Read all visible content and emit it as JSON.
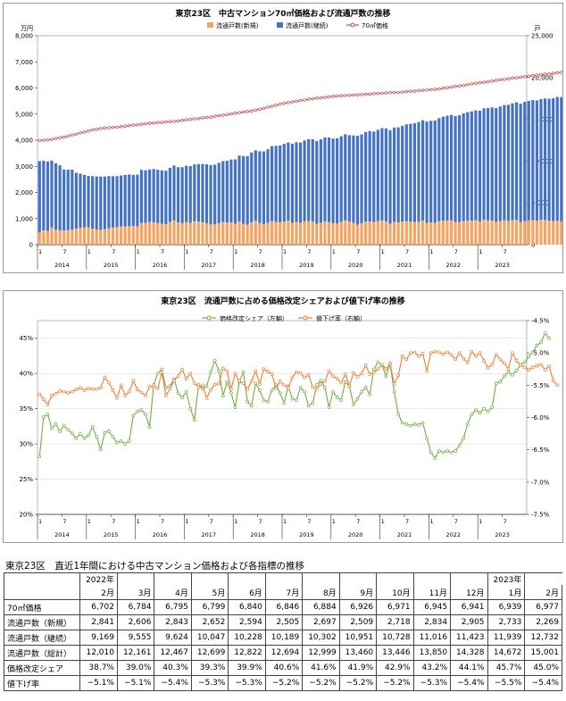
{
  "chart_data": [
    {
      "type": "bar+line",
      "title": "東京23区　中古マンション70㎡価格および流通戸数の推移",
      "y_left_unit": "万円",
      "y_right_unit": "戸",
      "y_left_ticks": [
        "0",
        "1,000",
        "2,000",
        "3,000",
        "4,000",
        "5,000",
        "6,000",
        "7,000",
        "8,000"
      ],
      "y_right_ticks": [
        "0",
        "5,000",
        "10,000",
        "15,000",
        "20,000",
        "25,000"
      ],
      "ylim_left": [
        0,
        8000
      ],
      "ylim_right": [
        0,
        25000
      ],
      "x_month_ticks": [
        "1",
        "7",
        "1",
        "7",
        "1",
        "7",
        "1",
        "7",
        "1",
        "7",
        "1",
        "7",
        "1",
        "7",
        "1",
        "7",
        "1",
        "7",
        "1",
        "7"
      ],
      "x_year_labels": [
        "2014",
        "2015",
        "2016",
        "2017",
        "2018",
        "2019",
        "2020",
        "2021",
        "2022",
        "2023"
      ],
      "legend": [
        "流通戸数(新規)",
        "流通戸数(継続)",
        "70㎡価格"
      ],
      "legend_position": "top",
      "colors": {
        "new": "#f4a460",
        "continuing": "#4472c4",
        "price": "#c0504d"
      },
      "series": [
        {
          "name": "流通戸数(新規)",
          "axis": "right",
          "stacked": true,
          "values": [
            1450,
            1700,
            1650,
            2050,
            1780,
            1700,
            1690,
            1720,
            1780,
            1900,
            2000,
            2050,
            2080,
            1900,
            1820,
            1750,
            1850,
            1950,
            2040,
            2100,
            2180,
            2150,
            2200,
            2240,
            2180,
            2580,
            2600,
            2700,
            2650,
            2580,
            2500,
            2450,
            2700,
            2900,
            2650,
            2570,
            2690,
            2600,
            2800,
            2750,
            2650,
            2550,
            2420,
            2450,
            2550,
            2700,
            2640,
            2680,
            2510,
            2760,
            2510,
            2400,
            2650,
            2850,
            2580,
            2460,
            2590,
            2800,
            2700,
            2680,
            2760,
            2890,
            2610,
            2700,
            2620,
            2790,
            2820,
            2780,
            2510,
            2600,
            2780,
            2700,
            2550,
            2530,
            2700,
            2910,
            2750,
            2600,
            2400,
            2540,
            2750,
            2760,
            2690,
            2800,
            2900,
            2780,
            2500,
            2700,
            2660,
            2750,
            2800,
            2740,
            2700,
            2740,
            2880,
            2600,
            2650,
            2600,
            2800,
            2870,
            2880,
            2900,
            2710,
            2720,
            2800,
            2850,
            2860,
            2920,
            2780,
            2960,
            2900,
            2880,
            2720,
            2830,
            2900,
            2840,
            2920,
            2960,
            2700,
            2820,
            2900,
            2940,
            2860,
            2960,
            2950,
            2860,
            2820,
            2880,
            2790,
            2730,
            2740,
            2610,
            2900,
            2850,
            2720,
            2900,
            2650,
            2960,
            2560,
            2840,
            2610,
            2600,
            2850,
            2690
          ]
        },
        {
          "name": "流通戸数(継続)",
          "axis": "right",
          "stacked": true,
          "values": [
            8550,
            8350,
            8300,
            8000,
            7950,
            7800,
            7300,
            7250,
            7200,
            6700,
            6500,
            6300,
            6150,
            6300,
            6350,
            6400,
            6300,
            6260,
            6150,
            6100,
            6100,
            6200,
            6200,
            6100,
            6200,
            6380,
            6300,
            6300,
            6400,
            6380,
            6400,
            6400,
            6500,
            6560,
            6620,
            6700,
            6750,
            6800,
            6800,
            6900,
            7000,
            7060,
            7100,
            7120,
            7250,
            7300,
            7400,
            7500,
            7700,
            7900,
            8100,
            8200,
            8380,
            8440,
            8600,
            8700,
            8830,
            9000,
            9130,
            9200,
            9300,
            9330,
            9460,
            9560,
            9600,
            9680,
            9800,
            9830,
            9900,
            10000,
            10060,
            10130,
            10150,
            10200,
            10270,
            10300,
            10350,
            10470,
            10620,
            10650,
            10720,
            10830,
            10840,
            10950,
            11050,
            11140,
            11200,
            11320,
            11380,
            11470,
            11600,
            11720,
            11830,
            11950,
            12010,
            12130,
            12170,
            12260,
            12330,
            12440,
            12550,
            12620,
            12690,
            12770,
            12900,
            13000,
            13090,
            13150,
            13250,
            13360,
            13460,
            13540,
            13620,
            13700,
            13800,
            13900,
            13990,
            14080,
            14170,
            14260,
            14300,
            14360,
            14400,
            14460,
            14540,
            14600,
            14700,
            14800,
            14870,
            14950,
            15030,
            15120,
            15190,
            15260,
            15310,
            15370,
            15420,
            15480,
            15550,
            15650,
            15760,
            15900,
            15960,
            16050
          ]
        },
        {
          "name": "70㎡価格",
          "axis": "left",
          "type": "line",
          "values": [
            3990,
            4000,
            4010,
            4030,
            4070,
            4100,
            4120,
            4160,
            4200,
            4230,
            4280,
            4310,
            4350,
            4400,
            4420,
            4450,
            4470,
            4480,
            4490,
            4500,
            4520,
            4540,
            4560,
            4580,
            4590,
            4610,
            4630,
            4650,
            4660,
            4680,
            4680,
            4700,
            4710,
            4720,
            4740,
            4760,
            4780,
            4800,
            4820,
            4830,
            4860,
            4870,
            4880,
            4920,
            4940,
            4960,
            4980,
            5010,
            5030,
            5050,
            5080,
            5100,
            5120,
            5160,
            5190,
            5220,
            5270,
            5300,
            5340,
            5380,
            5410,
            5440,
            5470,
            5490,
            5520,
            5540,
            5570,
            5590,
            5610,
            5620,
            5640,
            5660,
            5680,
            5690,
            5700,
            5710,
            5720,
            5730,
            5740,
            5750,
            5760,
            5760,
            5780,
            5790,
            5800,
            5810,
            5820,
            5830,
            5830,
            5840,
            5860,
            5870,
            5880,
            5900,
            5910,
            5920,
            5930,
            5950,
            5960,
            5990,
            6010,
            6040,
            6060,
            6080,
            6100,
            6130,
            6160,
            6180,
            6200,
            6220,
            6240,
            6260,
            6290,
            6310,
            6330,
            6350,
            6380,
            6390,
            6410,
            6430,
            6450,
            6470,
            6490,
            6510,
            6530,
            6540,
            6560,
            6580,
            6600,
            6620,
            6640,
            6650,
            6670,
            6680,
            6700,
            6720,
            6730,
            6740,
            6760,
            6780,
            6800,
            6820,
            6840,
            6860
          ]
        }
      ]
    },
    {
      "type": "line",
      "title": "東京23区　流通戸数に占める価格改定シェアおよび値下げ率の推移",
      "y_left_ticks": [
        "20%",
        "25%",
        "30%",
        "35%",
        "40%",
        "45%"
      ],
      "y_right_ticks": [
        "-7.5%",
        "-7.0%",
        "-6.5%",
        "-6.0%",
        "-5.5%",
        "-5.0%",
        "-4.5%"
      ],
      "ylim_left": [
        20,
        47.5
      ],
      "ylim_right": [
        -7.5,
        -4.5
      ],
      "x_month_ticks": [
        "1",
        "7",
        "1",
        "7",
        "1",
        "7",
        "1",
        "7",
        "1",
        "7",
        "1",
        "7",
        "1",
        "7",
        "1",
        "7",
        "1",
        "7",
        "1",
        "7"
      ],
      "x_year_labels": [
        "2014",
        "2015",
        "2016",
        "2017",
        "2018",
        "2019",
        "2020",
        "2021",
        "2022",
        "2023"
      ],
      "legend": [
        "価格改定シェア（左軸）",
        "値下げ率（右軸）"
      ],
      "legend_position": "top",
      "colors": {
        "share": "#70ad47",
        "rate": "#ed7d31"
      },
      "series": [
        {
          "name": "価格改定シェア（左軸）",
          "axis": "left",
          "values": [
            28.2,
            33.8,
            34.2,
            32.2,
            32.8,
            31.8,
            32.6,
            32.0,
            31.5,
            30.8,
            31.4,
            30.8,
            31.2,
            32.4,
            31.0,
            29.2,
            31.6,
            31.8,
            31.0,
            30.2,
            30.4,
            30.0,
            30.4,
            34.0,
            34.6,
            34.8,
            34.2,
            32.4,
            38.4,
            40.0,
            40.6,
            38.0,
            38.2,
            39.2,
            37.2,
            36.6,
            37.4,
            35.0,
            33.4,
            38.4,
            37.8,
            38.2,
            40.2,
            41.8,
            40.4,
            36.8,
            38.8,
            37.2,
            35.2,
            38.8,
            40.2,
            36.0,
            35.4,
            38.6,
            37.6,
            36.2,
            36.0,
            37.6,
            38.4,
            37.2,
            35.8,
            38.2,
            36.4,
            36.2,
            38.0,
            37.4,
            35.4,
            35.8,
            38.4,
            39.0,
            38.0,
            35.2,
            37.4,
            36.6,
            36.2,
            38.8,
            38.2,
            35.6,
            36.4,
            37.4,
            38.0,
            37.0,
            40.6,
            41.6,
            41.2,
            39.6,
            41.4,
            37.4,
            34.2,
            33.0,
            32.8,
            32.6,
            32.8,
            32.7,
            33.0,
            30.8,
            28.8,
            28.0,
            29.0,
            28.8,
            29.0,
            28.8,
            29.0,
            29.8,
            30.8,
            32.8,
            34.2,
            34.8,
            34.4,
            35.0,
            34.6,
            35.2,
            38.6,
            38.8,
            39.6,
            40.2,
            39.8,
            40.4,
            41.2,
            41.6,
            42.4,
            43.0,
            44.0,
            44.4,
            45.7,
            45.0
          ]
        },
        {
          "name": "値下げ率（右軸）",
          "axis": "right",
          "values": [
            -5.64,
            -5.72,
            -5.8,
            -5.66,
            -5.63,
            -5.59,
            -5.6,
            -5.62,
            -5.6,
            -5.57,
            -5.54,
            -5.58,
            -5.55,
            -5.56,
            -5.56,
            -5.54,
            -5.38,
            -5.46,
            -5.58,
            -5.7,
            -5.5,
            -5.66,
            -5.6,
            -5.43,
            -5.57,
            -5.61,
            -5.66,
            -5.52,
            -5.52,
            -5.55,
            -5.3,
            -5.66,
            -5.56,
            -5.43,
            -5.36,
            -5.26,
            -5.4,
            -5.32,
            -5.47,
            -5.53,
            -5.5,
            -5.7,
            -5.57,
            -5.49,
            -5.48,
            -5.24,
            -5.28,
            -5.56,
            -5.32,
            -5.44,
            -5.47,
            -5.56,
            -5.44,
            -5.28,
            -5.48,
            -5.25,
            -5.29,
            -5.33,
            -5.55,
            -5.44,
            -5.5,
            -5.54,
            -5.38,
            -5.3,
            -5.31,
            -5.38,
            -5.34,
            -5.53,
            -5.56,
            -5.48,
            -5.44,
            -5.28,
            -5.36,
            -5.4,
            -5.46,
            -5.33,
            -5.51,
            -5.31,
            -5.37,
            -5.32,
            -5.19,
            -5.33,
            -5.3,
            -5.25,
            -5.18,
            -5.25,
            -5.17,
            -5.48,
            -5.35,
            -5.05,
            -5.1,
            -5.0,
            -4.99,
            -5.05,
            -5.01,
            -5.28,
            -5.0,
            -4.98,
            -4.99,
            -5.02,
            -4.99,
            -5.03,
            -5.1,
            -5.0,
            -5.09,
            -5.15,
            -4.98,
            -5.05,
            -5.0,
            -5.12,
            -5.23,
            -5.18,
            -5.03,
            -5.1,
            -5.16,
            -5.25,
            -5.0,
            -5.12,
            -5.19,
            -5.22,
            -5.26,
            -5.22,
            -5.2,
            -5.18,
            -5.26,
            -5.21,
            -5.43,
            -5.5
          ]
        }
      ]
    },
    {
      "type": "table",
      "title": "東京23区　直近1年間における中古マンション価格および各指標の推移",
      "year_row": [
        "",
        "2022年",
        "",
        "",
        "",
        "",
        "",
        "",
        "",
        "",
        "",
        "",
        "2023年",
        ""
      ],
      "columns": [
        "",
        "2月",
        "3月",
        "4月",
        "5月",
        "6月",
        "7月",
        "8月",
        "9月",
        "10月",
        "11月",
        "12月",
        "1月",
        "2月"
      ],
      "rows": [
        {
          "label": "70㎡価格",
          "values": [
            "6,702",
            "6,784",
            "6,795",
            "6,799",
            "6,840",
            "6,846",
            "6,884",
            "6,926",
            "6,971",
            "6,945",
            "6,941",
            "6,939",
            "6,977"
          ]
        },
        {
          "label": "流通戸数（新規）",
          "values": [
            "2,841",
            "2,606",
            "2,843",
            "2,652",
            "2,594",
            "2,505",
            "2,697",
            "2,509",
            "2,718",
            "2,834",
            "2,905",
            "2,733",
            "2,269"
          ]
        },
        {
          "label": "流通戸数（継続）",
          "values": [
            "9,169",
            "9,555",
            "9,624",
            "10,047",
            "10,228",
            "10,189",
            "10,302",
            "10,951",
            "10,728",
            "11,016",
            "11,423",
            "11,939",
            "12,732"
          ]
        },
        {
          "label": "流通戸数（総計）",
          "values": [
            "12,010",
            "12,161",
            "12,467",
            "12,699",
            "12,822",
            "12,694",
            "12,999",
            "13,460",
            "13,446",
            "13,850",
            "14,328",
            "14,672",
            "15,001"
          ]
        },
        {
          "label": "価格改定シェア",
          "values": [
            "38.7%",
            "39.0%",
            "40.3%",
            "39.3%",
            "39.9%",
            "40.6%",
            "41.6%",
            "41.9%",
            "42.9%",
            "43.2%",
            "44.1%",
            "45.7%",
            "45.0%"
          ]
        },
        {
          "label": "値下げ率",
          "values": [
            "−5.1%",
            "−5.1%",
            "−5.4%",
            "−5.3%",
            "−5.3%",
            "−5.2%",
            "−5.2%",
            "−5.2%",
            "−5.2%",
            "−5.3%",
            "−5.4%",
            "−5.5%",
            "−5.4%"
          ]
        }
      ]
    }
  ]
}
